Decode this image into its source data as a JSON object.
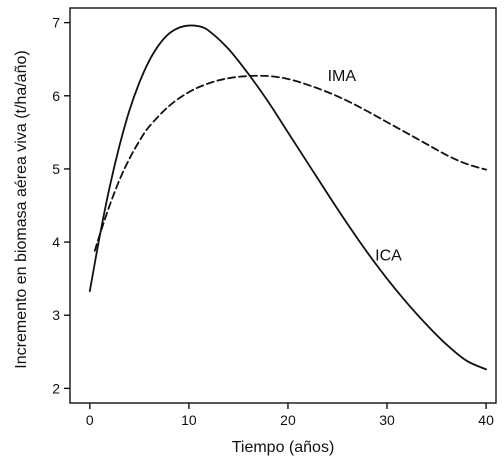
{
  "chart_data": {
    "type": "line",
    "title": "",
    "xlabel": "Tiempo (años)",
    "ylabel": "Incremento en biomasa aérea viva (t/ha/año)",
    "xlim": [
      -2,
      41
    ],
    "ylim": [
      1.8,
      7.2
    ],
    "xticks": [
      0,
      10,
      20,
      30,
      40
    ],
    "yticks": [
      2,
      3,
      4,
      5,
      6,
      7
    ],
    "grid": false,
    "legend": "none",
    "series": [
      {
        "name": "ICA",
        "style": "solid",
        "color": "#111111",
        "x": [
          0,
          1,
          2,
          3,
          4,
          5,
          6,
          7,
          8,
          9,
          10,
          11,
          12,
          14,
          16,
          18,
          20,
          22,
          24,
          26,
          28,
          30,
          32,
          34,
          36,
          38,
          40
        ],
        "y": [
          3.33,
          4.08,
          4.75,
          5.32,
          5.8,
          6.18,
          6.48,
          6.7,
          6.85,
          6.93,
          6.96,
          6.95,
          6.89,
          6.64,
          6.3,
          5.92,
          5.5,
          5.08,
          4.66,
          4.25,
          3.86,
          3.5,
          3.17,
          2.87,
          2.6,
          2.38,
          2.26
        ]
      },
      {
        "name": "IMA",
        "style": "dashed",
        "color": "#111111",
        "x": [
          0.5,
          1,
          2,
          3,
          4,
          5,
          6,
          8,
          10,
          12,
          14,
          16,
          18,
          20,
          22,
          24,
          26,
          28,
          30,
          32,
          34,
          36,
          38,
          40
        ],
        "y": [
          3.88,
          4.1,
          4.5,
          4.85,
          5.14,
          5.38,
          5.58,
          5.86,
          6.05,
          6.17,
          6.24,
          6.27,
          6.27,
          6.23,
          6.15,
          6.05,
          5.93,
          5.79,
          5.64,
          5.49,
          5.34,
          5.19,
          5.07,
          4.99
        ]
      }
    ],
    "annotations": [
      {
        "text": "IMA",
        "x": 24,
        "y": 6.2
      },
      {
        "text": "ICA",
        "x": 28.8,
        "y": 3.75
      }
    ]
  }
}
